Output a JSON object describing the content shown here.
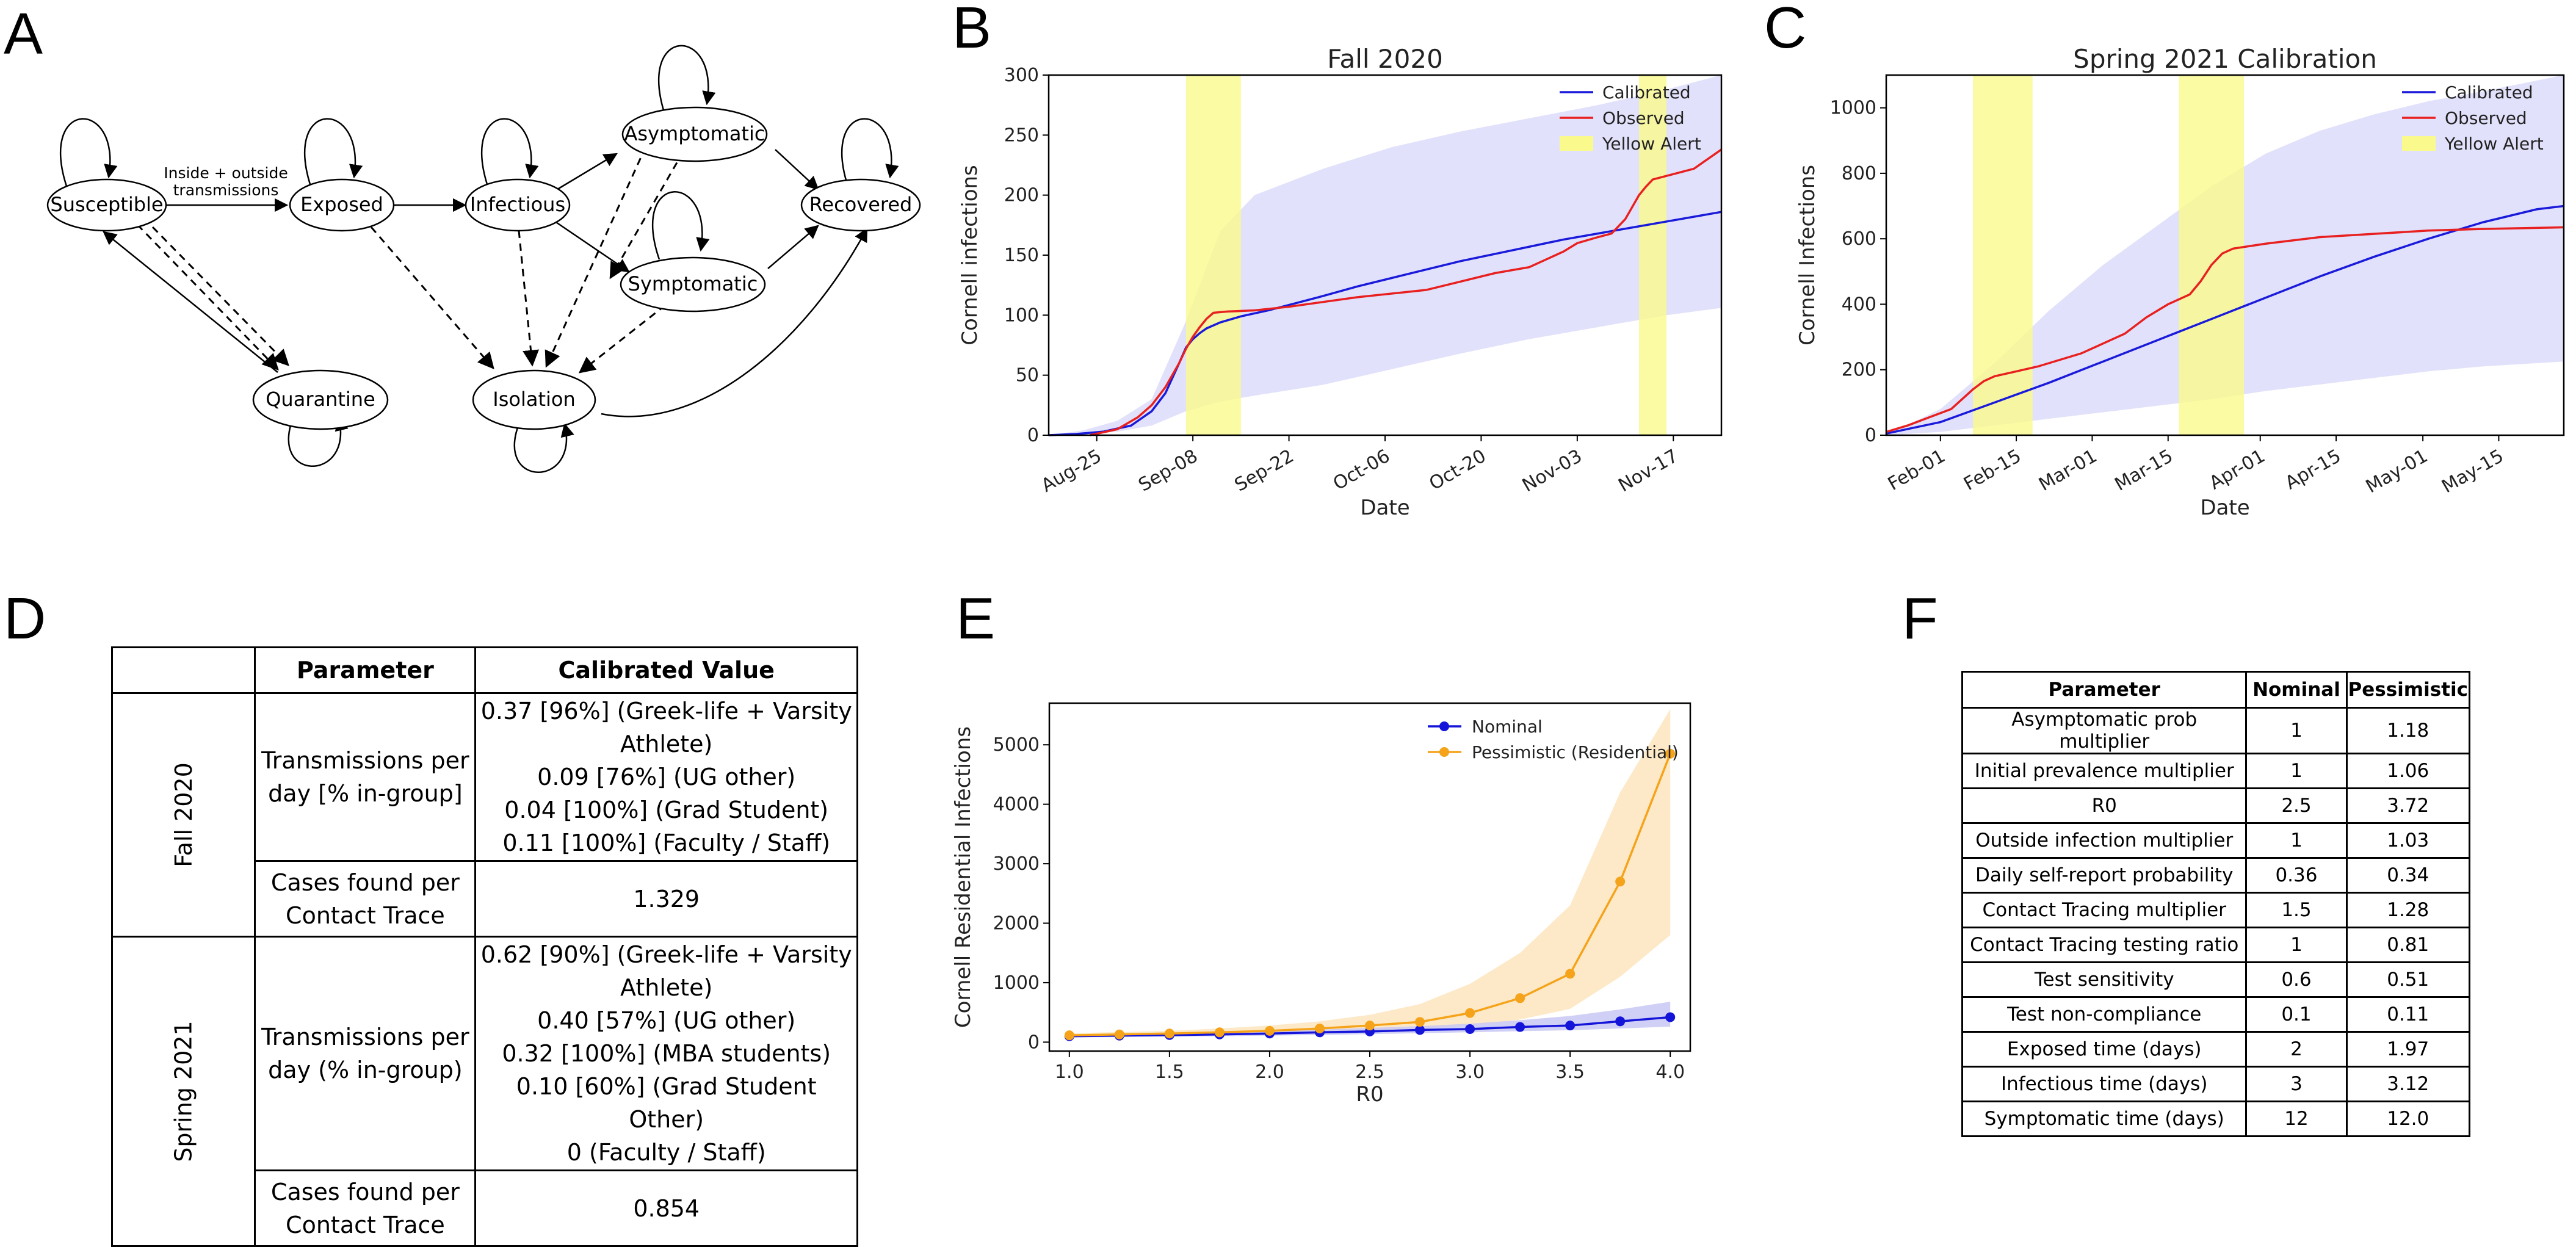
{
  "panels": {
    "A": "A",
    "B": "B",
    "C": "C",
    "D": "D",
    "E": "E",
    "F": "F"
  },
  "diagram": {
    "nodes": {
      "susceptible": "Susceptible",
      "exposed": "Exposed",
      "infectious": "Infectious",
      "asymptomatic": "Asymptomatic",
      "symptomatic": "Symptomatic",
      "recovered": "Recovered",
      "quarantine": "Quarantine",
      "isolation": "Isolation"
    },
    "edge_label_line1": "Inside + outside",
    "edge_label_line2": "transmissions"
  },
  "colors": {
    "calibrated": "#1a1adb",
    "observed": "#e8201f",
    "yellow": "#fafa8c",
    "band": "#dcdcfa",
    "nominal": "#1515d9",
    "pessimistic": "#f5a31a"
  },
  "chart_data": [
    {
      "id": "B",
      "type": "line",
      "title": "Fall 2020",
      "xlabel": "Date",
      "ylabel": "Cornell infections",
      "x_ticks": [
        "Aug-25",
        "Sep-08",
        "Sep-22",
        "Oct-06",
        "Oct-20",
        "Nov-03",
        "Nov-17"
      ],
      "x_tick_days": [
        7,
        21,
        35,
        49,
        63,
        77,
        91
      ],
      "xlim": [
        0,
        98
      ],
      "ylim": [
        0,
        300
      ],
      "y_ticks": [
        0,
        50,
        100,
        150,
        200,
        250,
        300
      ],
      "yellow_alert": [
        [
          20,
          28
        ],
        [
          86,
          90
        ]
      ],
      "band_days": [
        0,
        5,
        10,
        15,
        20,
        25,
        30,
        40,
        50,
        60,
        70,
        80,
        90,
        98
      ],
      "band_upper": [
        0,
        4,
        12,
        30,
        95,
        170,
        200,
        222,
        240,
        253,
        264,
        275,
        288,
        300
      ],
      "band_lower": [
        0,
        1,
        3,
        8,
        20,
        28,
        33,
        42,
        55,
        68,
        80,
        90,
        100,
        106
      ],
      "series": [
        {
          "name": "Calibrated",
          "x": [
            0,
            4,
            8,
            12,
            15,
            17,
            19,
            20,
            21,
            22,
            23,
            25,
            28,
            32,
            36,
            40,
            45,
            50,
            55,
            60,
            65,
            70,
            75,
            80,
            85,
            90,
            95,
            98
          ],
          "y": [
            0,
            1,
            3,
            8,
            20,
            35,
            60,
            73,
            80,
            85,
            89,
            94,
            99,
            104,
            110,
            116,
            124,
            131,
            138,
            145,
            151,
            157,
            163,
            168,
            173,
            178,
            183,
            186
          ]
        },
        {
          "name": "Observed",
          "x": [
            6,
            10,
            13,
            15,
            17,
            19,
            20,
            21,
            22,
            23,
            24,
            26,
            30,
            35,
            40,
            45,
            50,
            55,
            60,
            65,
            70,
            75,
            77,
            80,
            82,
            84,
            86,
            87,
            88,
            90,
            92,
            94,
            96,
            98
          ],
          "y": [
            0,
            5,
            15,
            25,
            40,
            60,
            72,
            82,
            90,
            97,
            102,
            103,
            104,
            107,
            111,
            115,
            118,
            121,
            128,
            135,
            140,
            153,
            160,
            165,
            168,
            180,
            200,
            207,
            213,
            216,
            219,
            222,
            230,
            238
          ]
        }
      ],
      "legend": [
        "Calibrated",
        "Observed",
        "Yellow Alert"
      ]
    },
    {
      "id": "C",
      "type": "line",
      "title": "Spring 2021 Calibration",
      "xlabel": "Date",
      "ylabel": "Cornell Infections",
      "x_ticks": [
        "Feb-01",
        "Feb-15",
        "Mar-01",
        "Mar-15",
        "Apr-01",
        "Apr-15",
        "May-01",
        "May-15"
      ],
      "x_tick_days": [
        10,
        24,
        38,
        52,
        69,
        83,
        99,
        113
      ],
      "xlim": [
        0,
        125
      ],
      "ylim": [
        0,
        1100
      ],
      "y_ticks": [
        0,
        200,
        400,
        600,
        800,
        1000
      ],
      "yellow_alert": [
        [
          16,
          27
        ],
        [
          54,
          66
        ]
      ],
      "band_days": [
        0,
        10,
        20,
        30,
        40,
        50,
        60,
        70,
        80,
        90,
        100,
        110,
        125
      ],
      "band_upper": [
        0,
        80,
        220,
        380,
        520,
        640,
        760,
        860,
        930,
        980,
        1020,
        1050,
        1100
      ],
      "band_lower": [
        0,
        10,
        30,
        50,
        70,
        90,
        110,
        135,
        155,
        175,
        195,
        210,
        225
      ],
      "series": [
        {
          "name": "Calibrated",
          "x": [
            0,
            10,
            20,
            30,
            40,
            50,
            60,
            70,
            80,
            90,
            100,
            110,
            120,
            125
          ],
          "y": [
            5,
            40,
            100,
            160,
            225,
            290,
            355,
            420,
            485,
            545,
            600,
            650,
            690,
            700
          ]
        },
        {
          "name": "Observed",
          "x": [
            0,
            4,
            8,
            12,
            16,
            18,
            20,
            24,
            28,
            32,
            36,
            40,
            44,
            48,
            52,
            56,
            58,
            60,
            62,
            64,
            66,
            70,
            75,
            80,
            90,
            100,
            110,
            125
          ],
          "y": [
            10,
            30,
            55,
            80,
            140,
            165,
            180,
            195,
            210,
            230,
            250,
            280,
            310,
            360,
            400,
            430,
            470,
            520,
            555,
            570,
            575,
            585,
            595,
            605,
            615,
            625,
            630,
            635
          ]
        }
      ],
      "legend": [
        "Calibrated",
        "Observed",
        "Yellow Alert"
      ]
    },
    {
      "id": "E",
      "type": "line",
      "title": "",
      "xlabel": "R0",
      "ylabel": "Cornell Residential Infections",
      "x": [
        1.0,
        1.25,
        1.5,
        1.75,
        2.0,
        2.25,
        2.5,
        2.75,
        3.0,
        3.25,
        3.5,
        3.75,
        4.0
      ],
      "x_ticks": [
        "1.0",
        "1.5",
        "2.0",
        "2.5",
        "3.0",
        "3.5",
        "4.0"
      ],
      "x_tick_values": [
        1.0,
        1.5,
        2.0,
        2.5,
        3.0,
        3.5,
        4.0
      ],
      "xlim": [
        0.9,
        4.1
      ],
      "ylim": [
        -150,
        5700
      ],
      "y_ticks": [
        0,
        1000,
        2000,
        3000,
        4000,
        5000
      ],
      "series": [
        {
          "name": "Nominal",
          "values": [
            100,
            110,
            120,
            130,
            145,
            165,
            180,
            205,
            220,
            255,
            280,
            350,
            420
          ],
          "upper": [
            130,
            140,
            150,
            170,
            190,
            210,
            240,
            270,
            310,
            370,
            440,
            550,
            680
          ],
          "lower": [
            80,
            85,
            90,
            100,
            110,
            120,
            135,
            150,
            165,
            185,
            200,
            230,
            260
          ]
        },
        {
          "name": "Pessimistic (Residential)",
          "values": [
            115,
            130,
            145,
            165,
            190,
            230,
            280,
            340,
            490,
            740,
            1150,
            2700,
            4850
          ],
          "upper": [
            150,
            170,
            190,
            230,
            280,
            350,
            460,
            640,
            980,
            1500,
            2300,
            4200,
            5600
          ],
          "lower": [
            90,
            100,
            110,
            125,
            140,
            160,
            190,
            220,
            280,
            380,
            560,
            1100,
            1800
          ]
        }
      ],
      "legend": [
        "Nominal",
        "Pessimistic (Residential)"
      ]
    }
  ],
  "tableD": {
    "header": {
      "param": "Parameter",
      "value": "Calibrated Value"
    },
    "fall": {
      "period": "Fall 2020",
      "tx_label_1": "Transmissions per",
      "tx_label_2": "day [% in-group]",
      "tx_values": [
        "0.37 [96%] (Greek-life + Varsity Athlete)",
        "0.09 [76%] (UG other)",
        "0.04 [100%] (Grad Student)",
        "0.11 [100%] (Faculty / Staff)"
      ],
      "ct_label_1": "Cases found per",
      "ct_label_2": "Contact Trace",
      "ct_value": "1.329"
    },
    "spring": {
      "period": "Spring 2021",
      "tx_label_1": "Transmissions per",
      "tx_label_2": "day (% in-group)",
      "tx_values": [
        "0.62 [90%] (Greek-life + Varsity Athlete)",
        "0.40 [57%] (UG other)",
        "0.32 [100%] (MBA students)",
        "0.10 [60%] (Grad Student Other)",
        "0 (Faculty / Staff)"
      ],
      "ct_label_1": "Cases found per",
      "ct_label_2": "Contact Trace",
      "ct_value": "0.854"
    }
  },
  "tableF": {
    "headers": [
      "Parameter",
      "Nominal",
      "Pessimistic"
    ],
    "rows": [
      [
        "Asymptomatic prob multiplier",
        "1",
        "1.18"
      ],
      [
        "Initial prevalence multiplier",
        "1",
        "1.06"
      ],
      [
        "R0",
        "2.5",
        "3.72"
      ],
      [
        "Outside infection multiplier",
        "1",
        "1.03"
      ],
      [
        "Daily self-report probability",
        "0.36",
        "0.34"
      ],
      [
        "Contact Tracing multiplier",
        "1.5",
        "1.28"
      ],
      [
        "Contact Tracing testing ratio",
        "1",
        "0.81"
      ],
      [
        "Test sensitivity",
        "0.6",
        "0.51"
      ],
      [
        "Test non-compliance",
        "0.1",
        "0.11"
      ],
      [
        "Exposed time (days)",
        "2",
        "1.97"
      ],
      [
        "Infectious time (days)",
        "3",
        "3.12"
      ],
      [
        "Symptomatic time (days)",
        "12",
        "12.0"
      ]
    ]
  }
}
